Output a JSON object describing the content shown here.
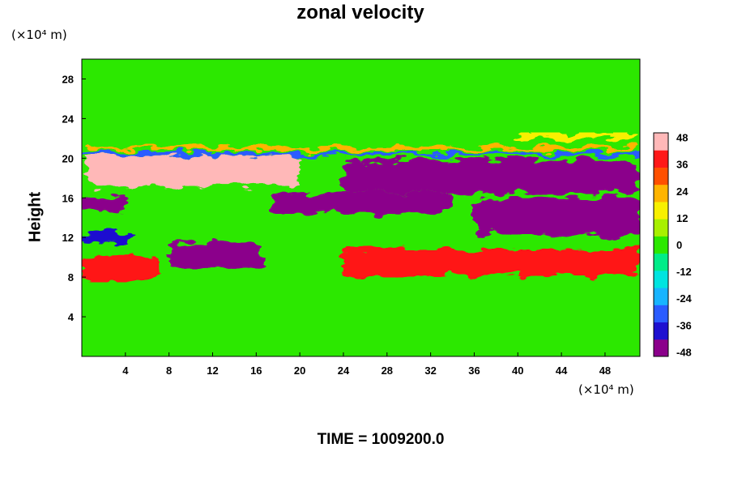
{
  "chart_data": {
    "type": "heatmap",
    "title": "zonal velocity",
    "ylabel": "Height",
    "xlabel": "",
    "x_unit": "(×10⁴ m)",
    "y_unit": "(×10⁴ m)",
    "footer": "TIME = 1009200.0",
    "xlim": [
      0,
      51.2
    ],
    "ylim": [
      0,
      30
    ],
    "x_ticks": [
      4,
      8,
      12,
      16,
      20,
      24,
      28,
      32,
      36,
      40,
      44,
      48
    ],
    "y_ticks": [
      4,
      8,
      12,
      16,
      20,
      24,
      28
    ],
    "colorbar": {
      "range": [
        -50,
        50
      ],
      "ticks": [
        48,
        36,
        24,
        12,
        0,
        -12,
        -24,
        -36,
        -48
      ],
      "colors": [
        "#8b008b",
        "#1e10d0",
        "#2a5cff",
        "#18b4ff",
        "#00e4e0",
        "#00ec88",
        "#2ce800",
        "#a8f000",
        "#f8f000",
        "#ffb400",
        "#ff5000",
        "#ff1818",
        "#ffb8b8"
      ]
    },
    "field_features": [
      {
        "x": [
          0,
          51.2
        ],
        "y": [
          20.8,
          21.2
        ],
        "value": 25
      },
      {
        "x": [
          0,
          51.2
        ],
        "y": [
          20.2,
          20.6
        ],
        "value": -28
      },
      {
        "x": [
          0.5,
          20
        ],
        "y": [
          17.2,
          20.2
        ],
        "value": 48
      },
      {
        "x": [
          0,
          4
        ],
        "y": [
          14.6,
          16
        ],
        "value": -45
      },
      {
        "x": [
          17.5,
          34
        ],
        "y": [
          14.5,
          16.5
        ],
        "value": -48
      },
      {
        "x": [
          24,
          51.2
        ],
        "y": [
          16.5,
          19.8
        ],
        "value": -48
      },
      {
        "x": [
          36,
          51.2
        ],
        "y": [
          12.2,
          16
        ],
        "value": -48
      },
      {
        "x": [
          8,
          16.5
        ],
        "y": [
          9,
          11.5
        ],
        "value": -48
      },
      {
        "x": [
          0,
          5
        ],
        "y": [
          11.5,
          12.5
        ],
        "value": -40
      },
      {
        "x": [
          0,
          7
        ],
        "y": [
          7.5,
          10.2
        ],
        "value": 40
      },
      {
        "x": [
          24,
          51.2
        ],
        "y": [
          8.2,
          10.8
        ],
        "value": 42
      },
      {
        "x": [
          40,
          51.2
        ],
        "y": [
          22,
          22.6
        ],
        "value": 18
      }
    ]
  }
}
